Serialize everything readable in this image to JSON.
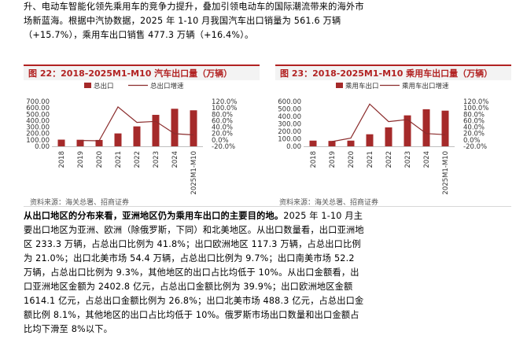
{
  "paragraph1": "升、电动车智能化领先乘用车的竞争力提升，叠加引领电动车的国际潮流带来的海外市场新蓝海。根据中汽协数据，2025 年 1-10 月我国汽车出口销量为 561.6 万辆（+15.7%），乘用车出口销售 477.3 万辆（+16.4%）。",
  "figure22": {
    "title": "图 22：2018-2025M1-M10 汽车出口量（万辆）",
    "source": "资料来源：海关总署、招商证券"
  },
  "figure23": {
    "title": "图 23：2018-2025M1-M10 乘用车出口量（万辆）",
    "source": "资料来源：海关总署、招商证券"
  },
  "chart_data": [
    {
      "type": "bar",
      "title": "2018-2025M1-M10 汽车出口量（万辆）",
      "categories": [
        "2018",
        "2019",
        "2020",
        "2021",
        "2022",
        "2023",
        "2024",
        "2025M1-M10"
      ],
      "series": [
        {
          "name": "总出口",
          "axis": "left",
          "type": "bar",
          "color": "#a52a2a",
          "values": [
            104,
            102,
            99,
            201,
            311,
            491,
            586,
            562
          ]
        },
        {
          "name": "总出口增速",
          "axis": "right",
          "type": "line",
          "color": "#8b2c2c",
          "values": [
            null,
            -1.9,
            -2.9,
            103.0,
            54.7,
            57.9,
            19.3,
            15.7
          ]
        }
      ],
      "ylim_left": [
        0,
        700
      ],
      "yticks_left": [
        "700.00",
        "600.00",
        "500.00",
        "400.00",
        "300.00",
        "200.00",
        "100.00",
        "0.00"
      ],
      "ylim_right": [
        -20,
        120
      ],
      "yticks_right": [
        "120.0%",
        "100.0%",
        "80.0%",
        "60.0%",
        "40.0%",
        "20.0%",
        "0.0%",
        "-20.0%"
      ],
      "legend": "top-center"
    },
    {
      "type": "bar",
      "title": "2018-2025M1-M10 乘用车出口量（万辆）",
      "categories": [
        "2018",
        "2019",
        "2020",
        "2021",
        "2022",
        "2023",
        "2024",
        "2025M1-M10"
      ],
      "series": [
        {
          "name": "乘用车出口",
          "axis": "left",
          "type": "bar",
          "color": "#a52a2a",
          "values": [
            76,
            72,
            76,
            161,
            253,
            414,
            496,
            477
          ]
        },
        {
          "name": "乘用车出口增速",
          "axis": "right",
          "type": "line",
          "color": "#8b2c2c",
          "values": [
            null,
            -5.3,
            5.6,
            111.8,
            57.1,
            63.6,
            19.8,
            16.4
          ]
        }
      ],
      "ylim_left": [
        0,
        600
      ],
      "yticks_left": [
        "600.00",
        "500.00",
        "400.00",
        "300.00",
        "200.00",
        "100.00",
        "0.00"
      ],
      "ylim_right": [
        -20,
        120
      ],
      "yticks_right": [
        "120.0%",
        "100.0%",
        "80.0%",
        "60.0%",
        "40.0%",
        "20.0%",
        "0.0%",
        "-20.0%"
      ],
      "legend": "top-center"
    }
  ],
  "paragraph2_lead": "从出口地区的分布来看，亚洲地区仍为乘用车出口的主要目的地。",
  "paragraph2_body": "2025 年 1-10 月主要出口地区为亚洲、欧洲（除俄罗斯，下同）和北美地区。从出口数量看，出口亚洲地区 233.3 万辆，占总出口比例为 41.8%；出口欧洲地区 117.3 万辆，占总出口比例为 21.0%；出口北美市场 54.4 万辆，占总出口比例为 9.7%；出口南美市场 52.2 万辆，占总出口比例为 9.3%，其他地区的出口占比均低于 10%。从出口金额看，出口亚洲地区金额为 2402.8 亿元，占总出口金额比例为 39.9%；出口欧洲地区金额 1614.1 亿元，占总出口金额比例为 26.8%；出口北美市场 488.3 亿元，占总出口金额比例 8.1%，其他地区的出口占比均低于 10%。俄罗斯市场出口数量和出口金额占比均下滑至 8%以下。"
}
